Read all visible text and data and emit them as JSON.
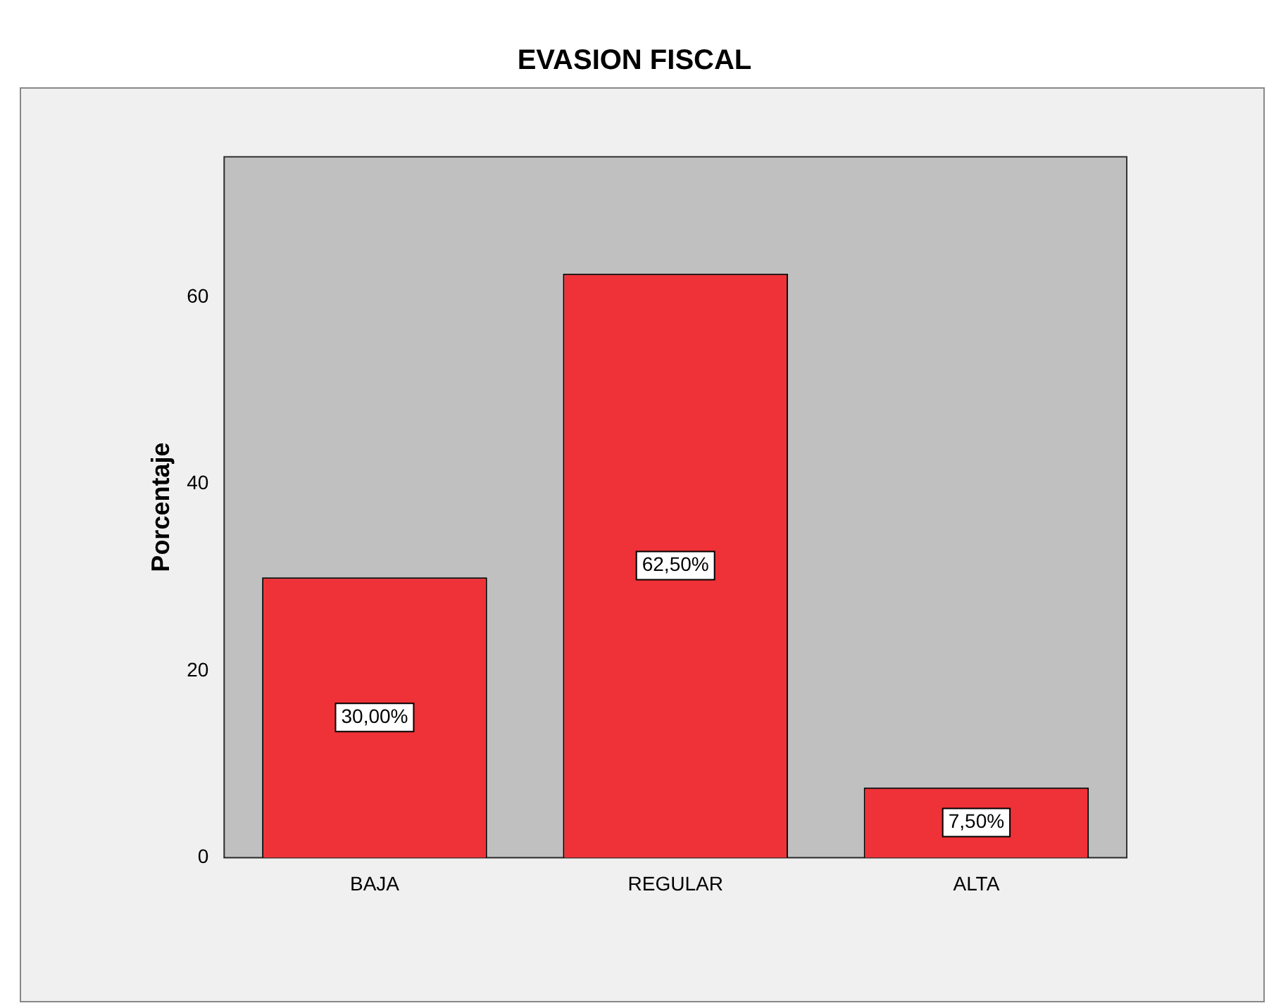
{
  "chart_data": {
    "type": "bar",
    "title": "EVASION FISCAL",
    "ylabel": "Porcentaje",
    "categories": [
      "BAJA",
      "REGULAR",
      "ALTA"
    ],
    "values": [
      30,
      62.5,
      7.5
    ],
    "value_labels": [
      "30,00%",
      "62,50%",
      "7,50%"
    ],
    "color": "#ee3237",
    "ylim": [
      0,
      75
    ],
    "yticks": [
      0,
      20,
      40,
      60
    ]
  }
}
